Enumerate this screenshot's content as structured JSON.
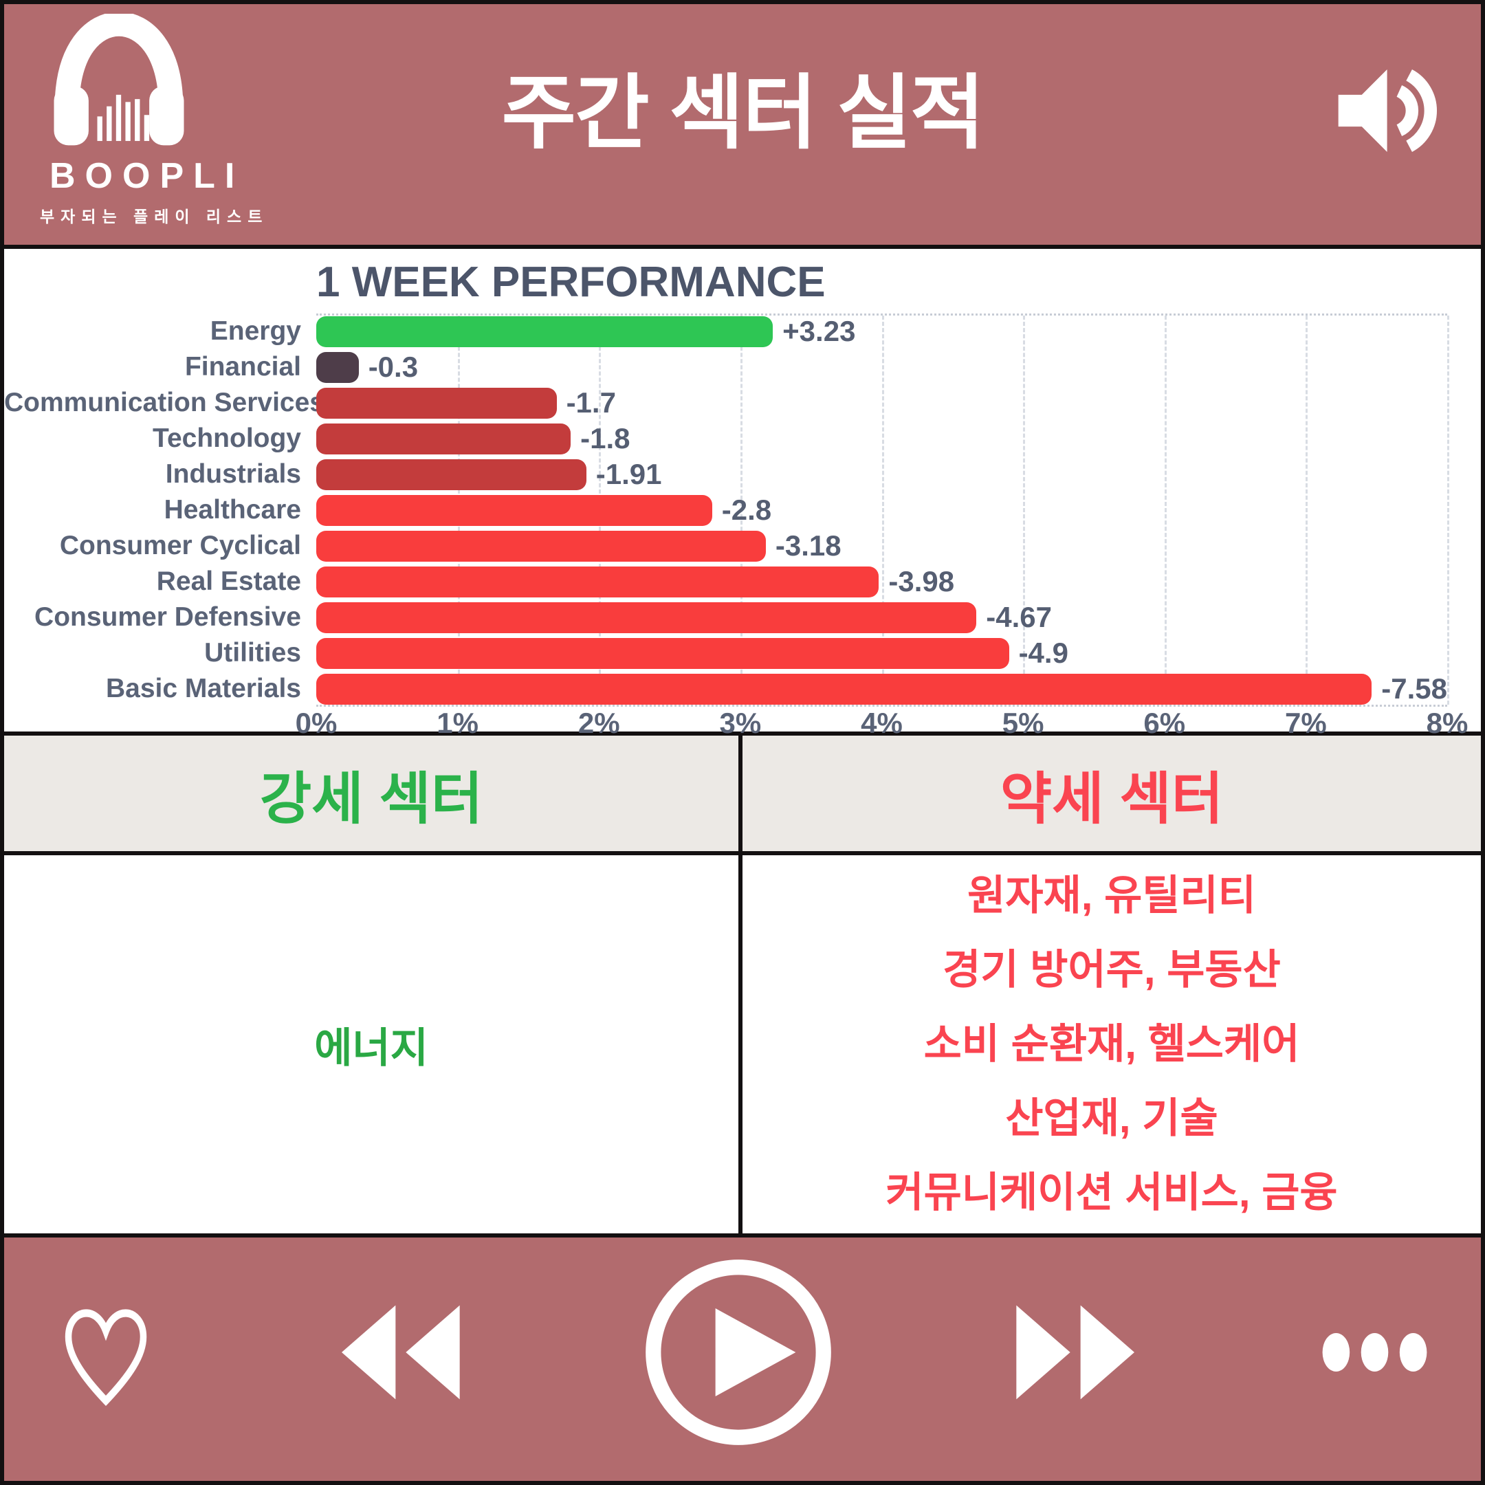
{
  "brand": {
    "name": "BOOPLI",
    "tagline": "부자되는 플레이 리스트",
    "logo_icon": "headphones-equalizer-icon"
  },
  "header": {
    "title": "주간 섹터 실적",
    "volume_icon": "speaker-volume-icon"
  },
  "chart_data": {
    "type": "bar",
    "orientation": "horizontal",
    "title": "1 WEEK PERFORMANCE",
    "categories": [
      "Energy",
      "Financial",
      "Communication Services",
      "Technology",
      "Industrials",
      "Healthcare",
      "Consumer Cyclical",
      "Real Estate",
      "Consumer Defensive",
      "Utilities",
      "Basic Materials"
    ],
    "values": [
      3.23,
      -0.3,
      -1.7,
      -1.8,
      -1.91,
      -2.8,
      -3.18,
      -3.98,
      -4.67,
      -4.9,
      -7.58
    ],
    "labels": [
      "+3.23",
      "-0.3",
      "-1.7",
      "-1.8",
      "-1.91",
      "-2.8",
      "-3.18",
      "-3.98",
      "-4.67",
      "-4.9",
      "-7.58"
    ],
    "bar_colors": [
      "#2ec654",
      "#4e3d49",
      "#c33c3c",
      "#c33c3c",
      "#c33c3c",
      "#f93d3d",
      "#f93d3d",
      "#f93d3d",
      "#f93d3d",
      "#f93d3d",
      "#f93d3d"
    ],
    "x_ticks": [
      "0%",
      "1%",
      "2%",
      "3%",
      "4%",
      "5%",
      "6%",
      "7%",
      "8%"
    ],
    "xlim": [
      0,
      8
    ],
    "grid": "dashed-vertical",
    "axis_scale_note": "bar length uses absolute value of percent change"
  },
  "table": {
    "header_strong": "강세 섹터",
    "header_weak": "약세 섹터",
    "strong_sector": "에너지",
    "weak_sectors": [
      "원자재, 유틸리티",
      "경기 방어주, 부동산",
      "소비 순환재, 헬스케어",
      "산업재, 기술",
      "커뮤니케이션 서비스, 금융"
    ]
  },
  "player": {
    "favorite_icon": "heart-outline-icon",
    "previous_icon": "rewind-icon",
    "play_icon": "play-circle-icon",
    "next_icon": "fast-forward-icon",
    "more_icon": "ellipsis-icon"
  },
  "colors": {
    "background": "#b26b6e",
    "panel": "#ffffff",
    "divider": "#131011",
    "table_header_bg": "#ece9e5",
    "strong_text": "#2bb24a",
    "weak_text": "#fa4450",
    "bar_positive": "#2ec654",
    "bar_near_flat": "#4e3d49",
    "bar_moderate_negative": "#c33c3c",
    "bar_strong_negative": "#f93d3d",
    "chart_text": "#5a6377"
  }
}
